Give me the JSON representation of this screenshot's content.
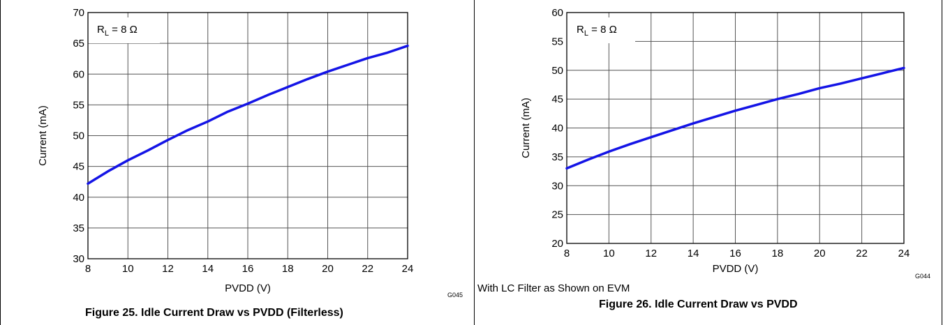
{
  "panels": [
    {
      "caption": "Figure 25. Idle Current Draw vs PVDD (Filterless)",
      "note": "",
      "graph_code": "G045"
    },
    {
      "caption": "Figure 26. Idle Current Draw vs PVDD",
      "note": "With LC Filter as Shown on EVM",
      "graph_code": "G044"
    }
  ],
  "chart_data": [
    {
      "type": "line",
      "title": "",
      "xlabel": "PVDD (V)",
      "ylabel": "Current (mA)",
      "xlim": [
        8,
        24
      ],
      "ylim": [
        30,
        70
      ],
      "xticks": [
        8,
        10,
        12,
        14,
        16,
        18,
        20,
        22,
        24
      ],
      "yticks": [
        30,
        35,
        40,
        45,
        50,
        55,
        60,
        65,
        70
      ],
      "grid": true,
      "annotation": {
        "main": "R",
        "sub": "L",
        "rest": " = 8 Ω"
      },
      "line_color": "#1414e6",
      "series": [
        {
          "x": [
            8,
            9,
            10,
            11,
            12,
            13,
            14,
            15,
            16,
            17,
            18,
            19,
            20,
            21,
            22,
            23,
            24
          ],
          "y": [
            42.2,
            44.2,
            46.0,
            47.6,
            49.3,
            50.9,
            52.3,
            53.9,
            55.2,
            56.6,
            57.9,
            59.2,
            60.4,
            61.5,
            62.6,
            63.5,
            64.6
          ]
        }
      ]
    },
    {
      "type": "line",
      "title": "",
      "xlabel": "PVDD (V)",
      "ylabel": "Current (mA)",
      "xlim": [
        8,
        24
      ],
      "ylim": [
        20,
        60
      ],
      "xticks": [
        8,
        10,
        12,
        14,
        16,
        18,
        20,
        22,
        24
      ],
      "yticks": [
        20,
        25,
        30,
        35,
        40,
        45,
        50,
        55,
        60
      ],
      "grid": true,
      "annotation": {
        "main": "R",
        "sub": "L",
        "rest": " = 8 Ω"
      },
      "line_color": "#1414e6",
      "series": [
        {
          "x": [
            8,
            9,
            10,
            11,
            12,
            13,
            14,
            15,
            16,
            17,
            18,
            19,
            20,
            21,
            22,
            23,
            24
          ],
          "y": [
            33.0,
            34.5,
            35.9,
            37.2,
            38.4,
            39.6,
            40.8,
            41.9,
            43.0,
            44.0,
            45.0,
            45.9,
            46.9,
            47.7,
            48.6,
            49.5,
            50.4
          ]
        }
      ]
    }
  ]
}
